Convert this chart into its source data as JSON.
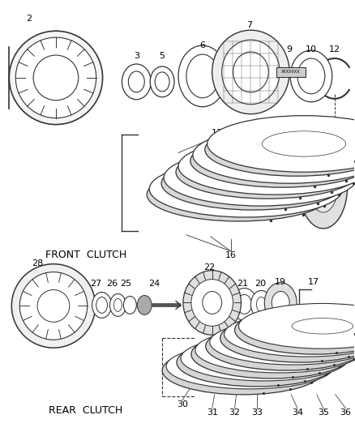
{
  "background_color": "#ffffff",
  "line_color": "#333333",
  "text_color": "#000000",
  "fig_width": 4.38,
  "fig_height": 5.33,
  "dpi": 100,
  "front_clutch_label": "FRONT  CLUTCH",
  "rear_clutch_label": "REAR  CLUTCH"
}
